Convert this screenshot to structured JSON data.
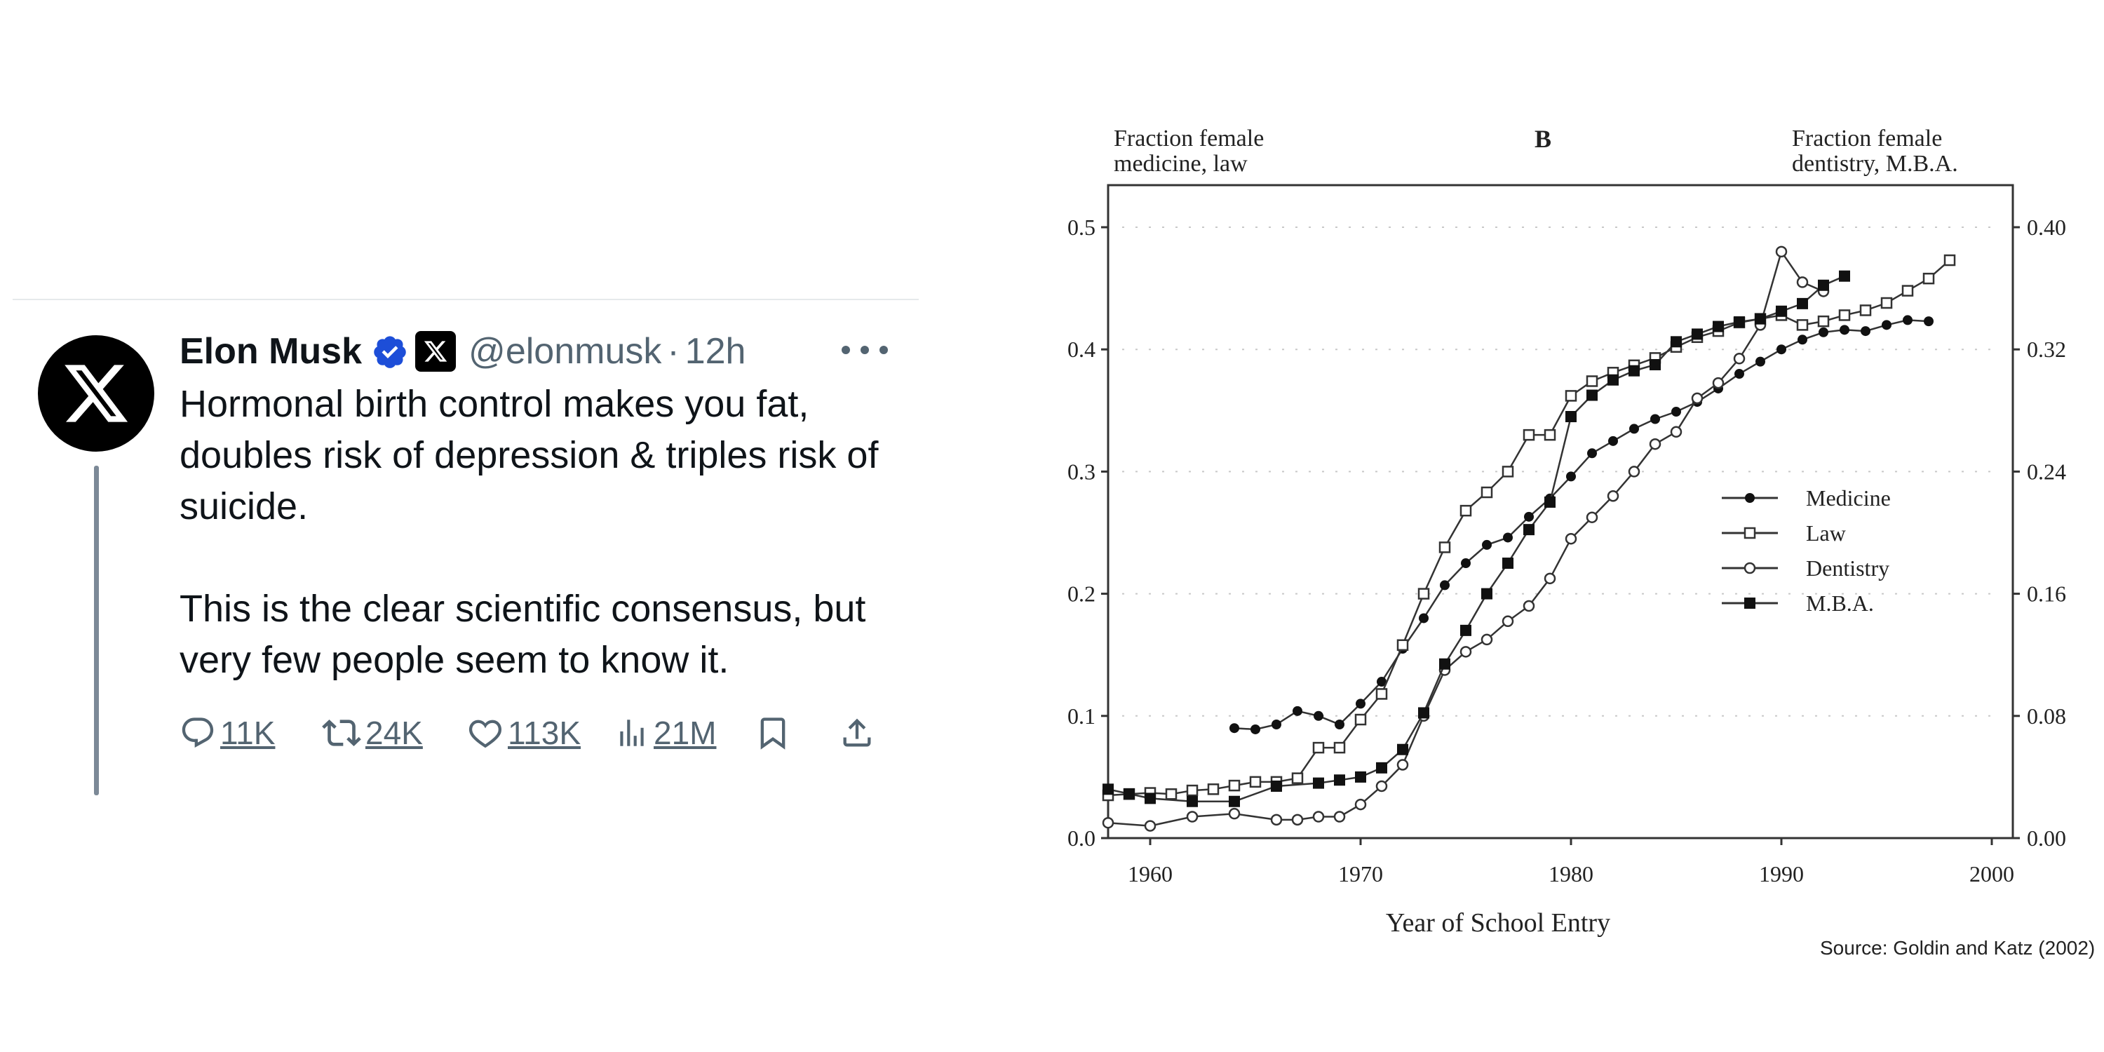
{
  "tweet": {
    "author_name": "Elon Musk",
    "handle": "@elonmusk",
    "separator": "·",
    "time": "12h",
    "text_p1": "Hormonal birth control makes you fat, doubles risk of depression & triples risk of suicide.",
    "text_p2": "This is the clear scientific consensus, but very few people seem to know it.",
    "replies": "11K",
    "reposts": "24K",
    "likes": "113K",
    "views": "21M",
    "icons": [
      "x-logo-icon",
      "verified-badge-icon",
      "x-affiliate-badge-icon",
      "more-icon",
      "reply-icon",
      "repost-icon",
      "like-icon",
      "views-icon",
      "bookmark-icon",
      "share-icon"
    ],
    "colors": {
      "text": "#0f1419",
      "secondary": "#536471",
      "verified": "#1d4ed8",
      "thread_line": "#7c8997"
    }
  },
  "chart_data": {
    "type": "line",
    "panel_label": "B",
    "left_axis_title": [
      "Fraction female",
      "medicine, law"
    ],
    "right_axis_title": [
      "Fraction female",
      "dentistry, M.B.A."
    ],
    "xlabel": "Year of School Entry",
    "xlim": [
      1958,
      2001
    ],
    "xticks": [
      "1960",
      "1970",
      "1980",
      "1990",
      "2000"
    ],
    "ylim_left": [
      0,
      0.5
    ],
    "yticks_left": [
      "0.0",
      "0.1",
      "0.2",
      "0.3",
      "0.4",
      "0.5"
    ],
    "ylim_right": [
      0,
      0.4
    ],
    "yticks_right": [
      "0.00",
      "0.08",
      "0.16",
      "0.24",
      "0.32",
      "0.40"
    ],
    "grid": "dotted",
    "legend_position": "right-middle",
    "series": [
      {
        "name": "Medicine",
        "axis": "left",
        "marker": "filled-circle",
        "x": [
          1964,
          1965,
          1966,
          1967,
          1968,
          1969,
          1970,
          1971,
          1972,
          1973,
          1974,
          1975,
          1976,
          1977,
          1978,
          1979,
          1980,
          1981,
          1982,
          1983,
          1984,
          1985,
          1986,
          1987,
          1988,
          1989,
          1990,
          1991,
          1992,
          1993,
          1994,
          1995,
          1996,
          1997
        ],
        "y": [
          0.09,
          0.089,
          0.093,
          0.104,
          0.1,
          0.093,
          0.11,
          0.128,
          0.155,
          0.18,
          0.207,
          0.225,
          0.24,
          0.246,
          0.263,
          0.278,
          0.296,
          0.315,
          0.325,
          0.335,
          0.343,
          0.349,
          0.357,
          0.368,
          0.38,
          0.39,
          0.4,
          0.408,
          0.414,
          0.416,
          0.415,
          0.42,
          0.424,
          0.423
        ]
      },
      {
        "name": "Law",
        "axis": "left",
        "marker": "open-square",
        "x": [
          1958,
          1959,
          1960,
          1961,
          1962,
          1963,
          1964,
          1965,
          1966,
          1967,
          1968,
          1969,
          1970,
          1971,
          1972,
          1973,
          1974,
          1975,
          1976,
          1977,
          1978,
          1979,
          1980,
          1981,
          1982,
          1983,
          1984,
          1985,
          1986,
          1987,
          1988,
          1989,
          1990,
          1991,
          1992,
          1993,
          1994,
          1995,
          1996,
          1997,
          1998
        ],
        "y": [
          0.035,
          0.036,
          0.037,
          0.036,
          0.039,
          0.04,
          0.043,
          0.046,
          0.046,
          0.049,
          0.074,
          0.074,
          0.097,
          0.118,
          0.158,
          0.2,
          0.238,
          0.268,
          0.283,
          0.3,
          0.33,
          0.33,
          0.362,
          0.374,
          0.381,
          0.387,
          0.393,
          0.402,
          0.41,
          0.415,
          0.422,
          0.425,
          0.428,
          0.42,
          0.423,
          0.428,
          0.432,
          0.438,
          0.448,
          0.458,
          0.473
        ]
      },
      {
        "name": "Dentistry",
        "axis": "right",
        "marker": "open-circle",
        "x": [
          1958,
          1960,
          1962,
          1964,
          1966,
          1967,
          1968,
          1969,
          1970,
          1971,
          1972,
          1973,
          1974,
          1975,
          1976,
          1977,
          1978,
          1979,
          1980,
          1981,
          1982,
          1983,
          1984,
          1985,
          1986,
          1987,
          1988,
          1989,
          1990,
          1991,
          1992
        ],
        "y": [
          0.01,
          0.008,
          0.014,
          0.016,
          0.012,
          0.012,
          0.014,
          0.014,
          0.022,
          0.034,
          0.048,
          0.08,
          0.11,
          0.122,
          0.13,
          0.142,
          0.152,
          0.17,
          0.196,
          0.21,
          0.224,
          0.24,
          0.258,
          0.266,
          0.288,
          0.298,
          0.314,
          0.336,
          0.384,
          0.364,
          0.358
        ]
      },
      {
        "name": "M.B.A.",
        "axis": "right",
        "marker": "filled-square",
        "x": [
          1958,
          1959,
          1960,
          1962,
          1964,
          1966,
          1968,
          1969,
          1970,
          1971,
          1972,
          1973,
          1974,
          1975,
          1976,
          1977,
          1978,
          1979,
          1980,
          1981,
          1982,
          1983,
          1984,
          1985,
          1986,
          1987,
          1988,
          1989,
          1990,
          1991,
          1992,
          1993
        ],
        "y": [
          0.032,
          0.029,
          0.026,
          0.024,
          0.024,
          0.034,
          0.036,
          0.038,
          0.04,
          0.046,
          0.058,
          0.082,
          0.114,
          0.136,
          0.16,
          0.18,
          0.202,
          0.22,
          0.276,
          0.29,
          0.3,
          0.306,
          0.31,
          0.325,
          0.33,
          0.335,
          0.338,
          0.34,
          0.345,
          0.35,
          0.362,
          0.368
        ]
      }
    ]
  },
  "source": "Source: Goldin and Katz (2002)"
}
